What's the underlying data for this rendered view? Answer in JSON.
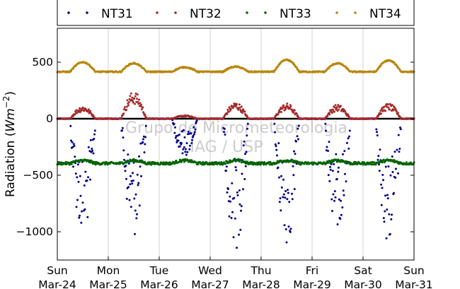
{
  "chart_data": {
    "type": "scatter",
    "ylabel": "Radiation (Wm^-2)",
    "ylim": [
      -1250,
      800
    ],
    "xlim": [
      0,
      7
    ],
    "yticks": [
      500,
      0,
      -500,
      -1000
    ],
    "ytick_labels": [
      "500",
      "0",
      "−500",
      "−1000"
    ],
    "xticks": [
      0,
      1,
      2,
      3,
      4,
      5,
      6,
      7
    ],
    "xtick_labels": [
      [
        "Sun",
        "Mar-24"
      ],
      [
        "Mon",
        "Mar-25"
      ],
      [
        "Tue",
        "Mar-26"
      ],
      [
        "Wed",
        "Mar-27"
      ],
      [
        "Thu",
        "Mar-28"
      ],
      [
        "Fri",
        "Mar-29"
      ],
      [
        "Sat",
        "Mar-30"
      ],
      [
        "Sun",
        "Mar-31"
      ]
    ],
    "grid": "vertical",
    "legend_position": "top",
    "zero_line": true,
    "watermark": [
      "Grupo de Micrometeorologia",
      "IAG / USP"
    ],
    "series": [
      {
        "name": "NT31",
        "color": "#00008b",
        "kind": "night-zero-day-negative",
        "daily_min": [
          -1000,
          -1000,
          -320,
          -1100,
          -1070,
          -1000,
          -1050
        ]
      },
      {
        "name": "NT32",
        "color": "#a52a2a",
        "kind": "night-zero-day-positive",
        "daily_max": [
          110,
          230,
          30,
          140,
          130,
          120,
          130
        ]
      },
      {
        "name": "NT33",
        "color": "#006400",
        "kind": "flat-noisy",
        "baseline": -395,
        "daytime_offset": 25
      },
      {
        "name": "NT34",
        "color": "#b8860b",
        "kind": "baseline-with-daily-hump",
        "baseline": 415,
        "daily_peak": [
          500,
          490,
          455,
          460,
          520,
          490,
          515
        ]
      }
    ]
  }
}
